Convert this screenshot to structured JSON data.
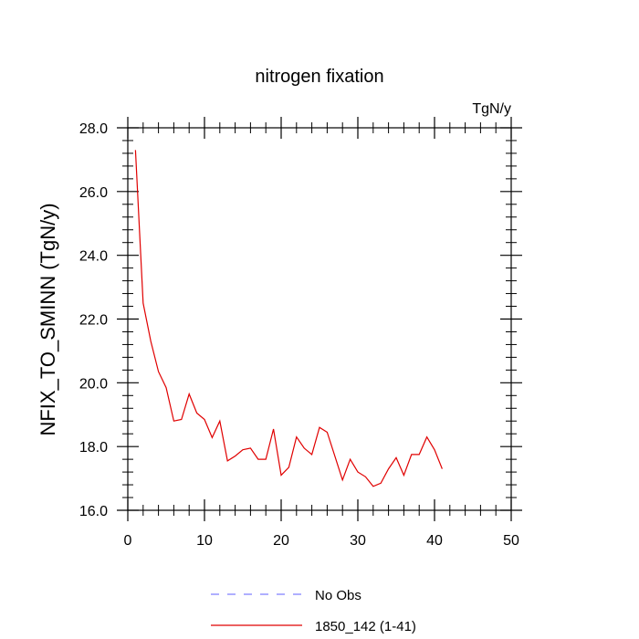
{
  "chart_data": {
    "type": "line",
    "title": "nitrogen fixation",
    "units_label": "TgN/y",
    "ylabel": "NFIX_TO_SMINN  (TgN/y)",
    "xlabel": "",
    "xlim": [
      0,
      50
    ],
    "ylim": [
      16.0,
      28.0
    ],
    "x_ticks": [
      0,
      10,
      20,
      30,
      40,
      50
    ],
    "x_tick_labels": [
      "0",
      "10",
      "20",
      "30",
      "40",
      "50"
    ],
    "y_ticks": [
      16.0,
      18.0,
      20.0,
      22.0,
      24.0,
      26.0,
      28.0
    ],
    "y_tick_labels": [
      "16.0",
      "18.0",
      "20.0",
      "22.0",
      "24.0",
      "26.0",
      "28.0"
    ],
    "grid": false,
    "legend_position": "bottom-center",
    "series": [
      {
        "name": "No Obs",
        "color": "#7f7fff",
        "dashed": true,
        "x": [],
        "y": []
      },
      {
        "name": "1850_142 (1-41)",
        "color": "#e00000",
        "dashed": false,
        "x": [
          1,
          2,
          3,
          4,
          5,
          6,
          7,
          8,
          9,
          10,
          11,
          12,
          13,
          14,
          15,
          16,
          17,
          18,
          19,
          20,
          21,
          22,
          23,
          24,
          25,
          26,
          27,
          28,
          29,
          30,
          31,
          32,
          33,
          34,
          35,
          36,
          37,
          38,
          39,
          40,
          41
        ],
        "y": [
          27.3,
          22.5,
          21.3,
          20.35,
          19.85,
          18.8,
          18.85,
          19.65,
          19.05,
          18.85,
          18.28,
          18.8,
          17.55,
          17.7,
          17.9,
          17.95,
          17.6,
          17.6,
          18.55,
          17.1,
          17.35,
          18.3,
          17.95,
          17.75,
          18.6,
          18.45,
          17.7,
          16.95,
          17.6,
          17.2,
          17.05,
          16.75,
          16.85,
          17.3,
          17.65,
          17.1,
          17.75,
          17.75,
          18.3,
          17.9,
          17.3
        ]
      }
    ]
  }
}
